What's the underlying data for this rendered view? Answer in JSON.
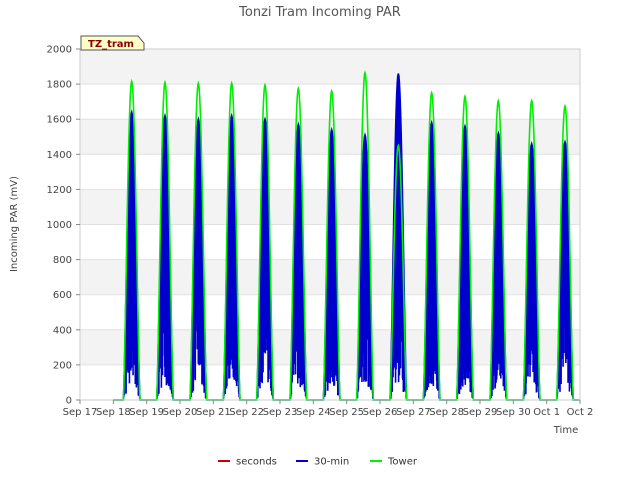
{
  "chart_data": {
    "type": "line",
    "title": "Tonzi Tram Incoming PAR",
    "xlabel": "Time",
    "ylabel": "Incoming PAR (mV)",
    "ylim": [
      0,
      2000
    ],
    "yticks": [
      0,
      200,
      400,
      600,
      800,
      1000,
      1200,
      1400,
      1600,
      1800,
      2000
    ],
    "xticks": [
      "Sep 17",
      "Sep 18",
      "Sep 19",
      "Sep 20",
      "Sep 21",
      "Sep 22",
      "Sep 23",
      "Sep 24",
      "Sep 25",
      "Sep 26",
      "Sep 27",
      "Sep 28",
      "Sep 29",
      "Sep 30",
      "Oct 1",
      "Oct 2"
    ],
    "badge": "TZ_tram",
    "legend_position": "bottom-center",
    "grid": "horizontal bands",
    "series": [
      {
        "name": "seconds",
        "color": "#cc0000",
        "daily_peaks": []
      },
      {
        "name": "30-min",
        "color": "#0000cc",
        "daily_peaks": [
          1640,
          1620,
          1600,
          1620,
          1600,
          1570,
          1540,
          1510,
          1860,
          1580,
          1560,
          1520,
          1460,
          1470
        ]
      },
      {
        "name": "Tower",
        "color": "#00ee00",
        "daily_peaks": [
          1815,
          1810,
          1805,
          1805,
          1795,
          1775,
          1760,
          1865,
          1450,
          1750,
          1730,
          1705,
          1705,
          1675
        ]
      }
    ]
  }
}
